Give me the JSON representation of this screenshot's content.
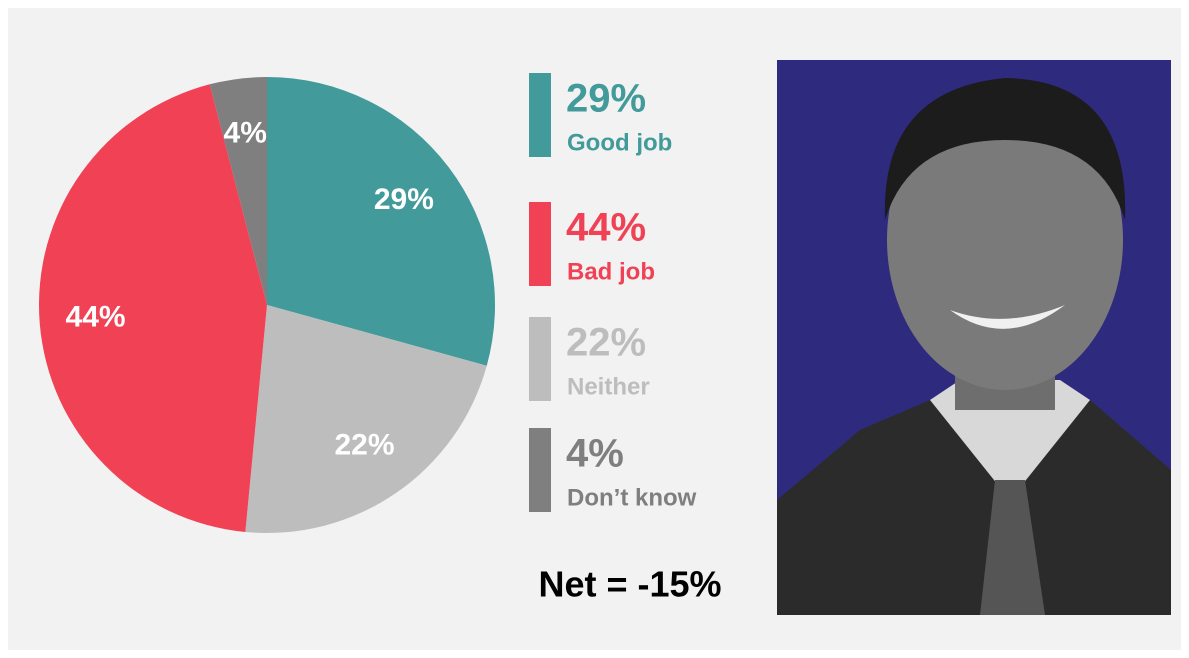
{
  "chart_data": {
    "type": "pie",
    "categories": [
      "Good job",
      "Neither",
      "Bad job",
      "Don’t know"
    ],
    "values": [
      29,
      22,
      44,
      4
    ],
    "value_labels": [
      "29%",
      "22%",
      "44%",
      "4%"
    ],
    "colors": [
      "#429a9a",
      "#bdbdbd",
      "#f04155",
      "#7f7f7f"
    ],
    "annotation": "Net = -15%"
  }
}
